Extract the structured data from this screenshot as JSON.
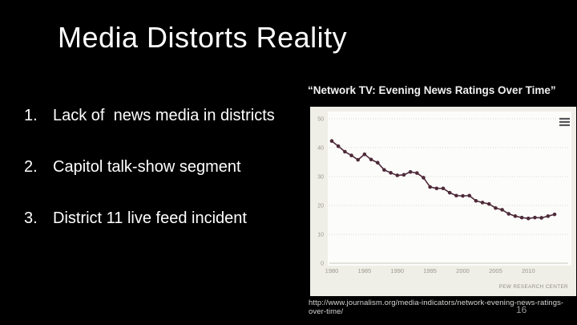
{
  "slide": {
    "title": "Media Distorts Reality",
    "list_items": [
      {
        "number": "1.",
        "text": "Lack of  news media in districts"
      },
      {
        "number": "2.",
        "text": "Capitol talk-show segment"
      },
      {
        "number": "3.",
        "text": "District 11 live feed incident"
      }
    ],
    "chart_heading": "“Network TV: Evening News Ratings Over Time”",
    "source_url": "http://www.journalism.org/media-indicators/network-evening-news-ratings-over-time/",
    "page_number": "16"
  },
  "chart_data": {
    "type": "line",
    "title": "Network TV: Evening News Ratings Over Time",
    "x": [
      1980,
      1981,
      1982,
      1983,
      1984,
      1985,
      1986,
      1987,
      1988,
      1989,
      1990,
      1991,
      1992,
      1993,
      1994,
      1995,
      1996,
      1997,
      1998,
      1999,
      2000,
      2001,
      2002,
      2003,
      2004,
      2005,
      2006,
      2007,
      2008,
      2009,
      2010,
      2011,
      2012,
      2013,
      2014
    ],
    "values": [
      42.3,
      40.5,
      38.6,
      37.3,
      35.8,
      37.7,
      35.9,
      34.8,
      32.3,
      31.3,
      30.4,
      30.6,
      31.6,
      31.2,
      29.6,
      26.4,
      25.9,
      25.9,
      24.4,
      23.4,
      23.3,
      23.4,
      21.6,
      21.0,
      20.5,
      19.1,
      18.5,
      17.1,
      16.3,
      15.8,
      15.5,
      15.8,
      15.7,
      16.3,
      16.9
    ],
    "xticks": [
      1980,
      1985,
      1990,
      1995,
      2000,
      2005,
      2010
    ],
    "yticks": [
      0,
      10,
      20,
      30,
      40,
      50
    ],
    "xlim": [
      1980,
      2014
    ],
    "ylim": [
      0,
      50
    ],
    "grid": true,
    "legend": "none",
    "source_label": "PEW RESEARCH CENTER",
    "menu_icon": "hamburger-icon",
    "colors": {
      "line": "#4e2a39",
      "frame_bg": "#efeee7",
      "plot_bg": "#fcfcfa",
      "grid": "#d9d8cf",
      "zero_line": "#c7c6bd",
      "axis_text": "#9b998d",
      "source_text": "#908e85",
      "menu_icon": "#565559"
    }
  }
}
